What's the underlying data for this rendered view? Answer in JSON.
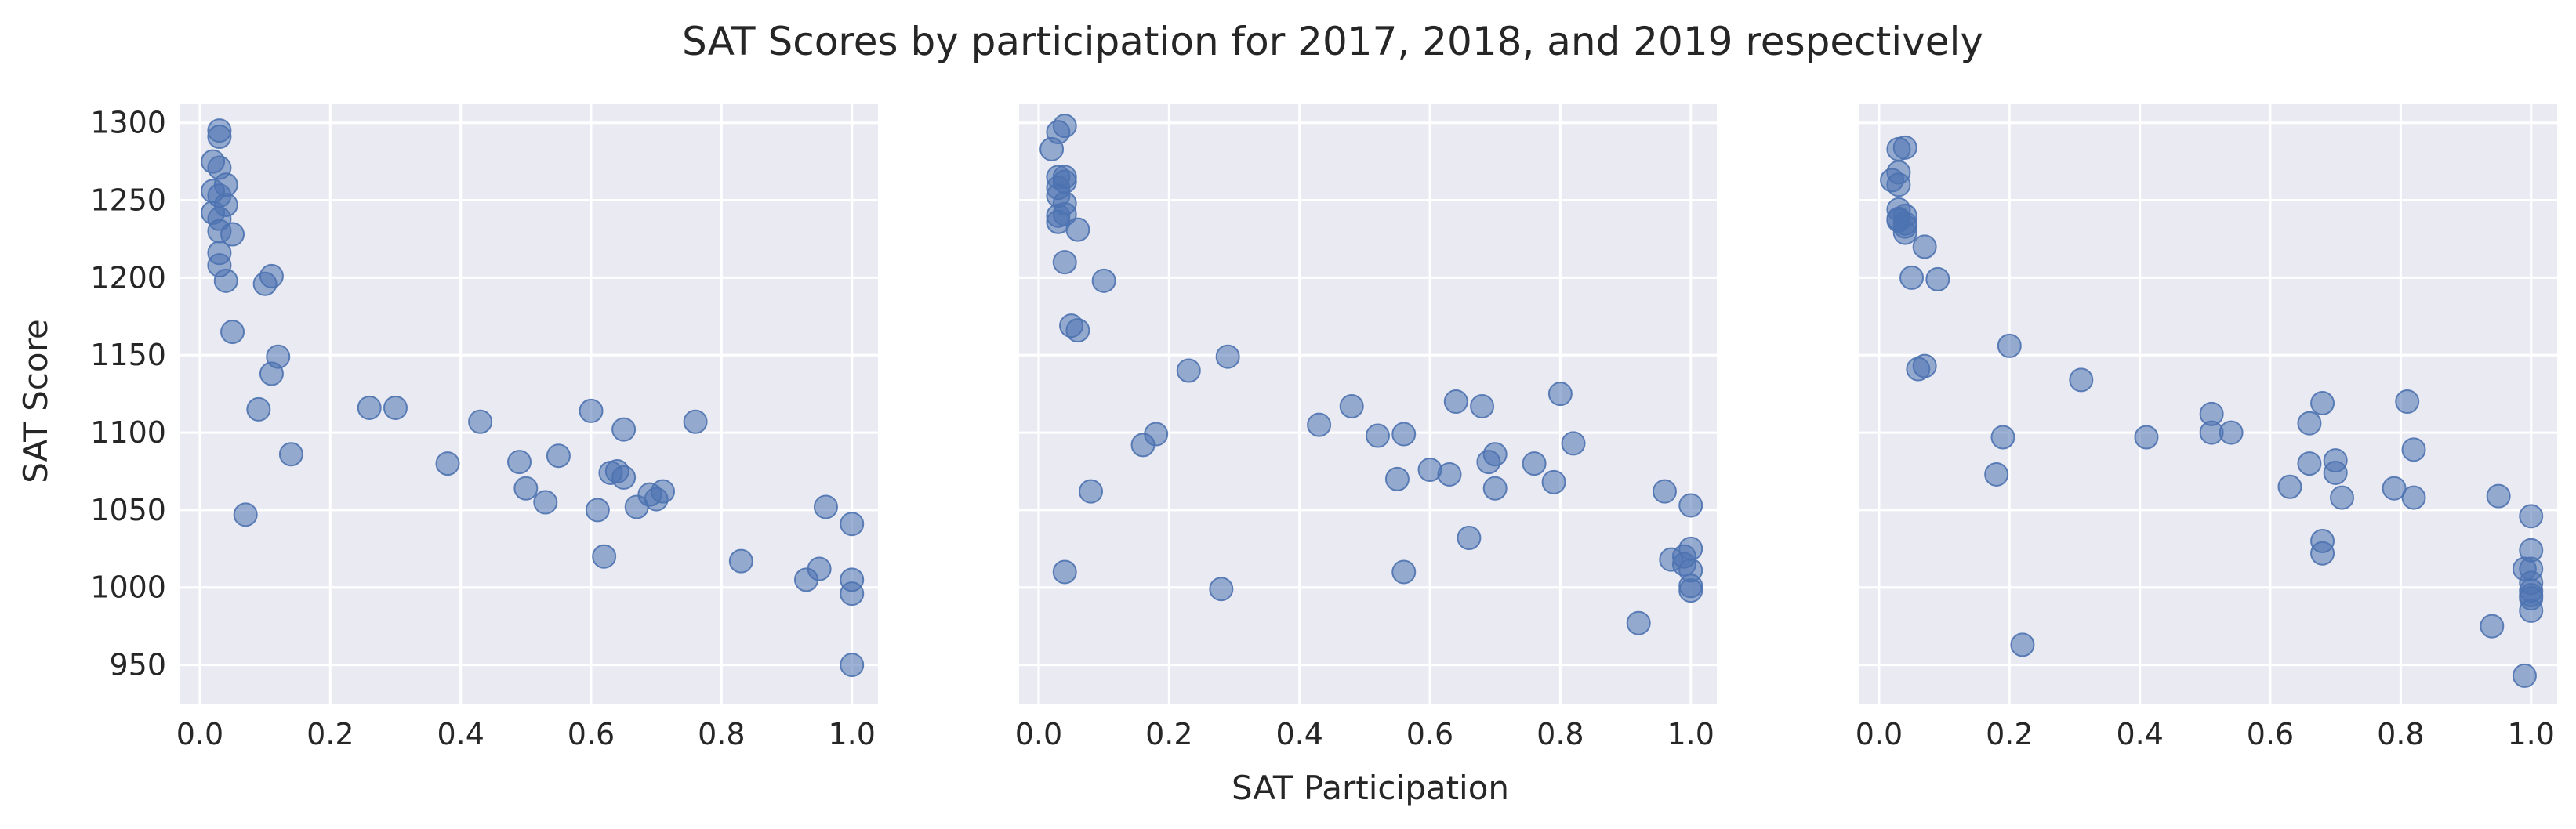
{
  "figure": {
    "title": "SAT Scores by participation for 2017, 2018, and 2019 respectively",
    "xlabel": "SAT Participation",
    "ylabel": "SAT Score",
    "background_color": "#eaeaf2",
    "grid_color": "#ffffff",
    "point_color": "#4c72b0"
  },
  "chart_data": [
    {
      "type": "scatter",
      "year_panel": 1,
      "xlim": [
        -0.03,
        1.04
      ],
      "ylim": [
        925,
        1312
      ],
      "xticks": [
        "0.0",
        "0.2",
        "0.4",
        "0.6",
        "0.8",
        "1.0"
      ],
      "yticks": [
        "950",
        "1000",
        "1050",
        "1100",
        "1150",
        "1200",
        "1250",
        "1300"
      ],
      "grid": true,
      "x": [
        0.03,
        0.03,
        0.02,
        0.03,
        0.04,
        0.02,
        0.03,
        0.04,
        0.02,
        0.03,
        0.03,
        0.05,
        0.03,
        0.03,
        0.04,
        0.05,
        0.11,
        0.1,
        0.12,
        0.11,
        0.09,
        0.14,
        0.07,
        0.26,
        0.3,
        0.38,
        0.43,
        0.49,
        0.5,
        0.53,
        0.55,
        0.6,
        0.61,
        0.62,
        0.63,
        0.64,
        0.65,
        0.65,
        0.67,
        0.69,
        0.7,
        0.71,
        0.76,
        0.83,
        0.93,
        0.95,
        0.96,
        1.0,
        1.0,
        1.0,
        1.0
      ],
      "y": [
        1295,
        1291,
        1275,
        1271,
        1260,
        1256,
        1253,
        1247,
        1242,
        1238,
        1230,
        1228,
        1216,
        1208,
        1198,
        1165,
        1201,
        1196,
        1149,
        1138,
        1115,
        1086,
        1047,
        1116,
        1116,
        1080,
        1107,
        1081,
        1064,
        1055,
        1085,
        1114,
        1050,
        1020,
        1074,
        1075,
        1102,
        1071,
        1052,
        1060,
        1057,
        1062,
        1107,
        1017,
        1005,
        1012,
        1052,
        1041,
        1005,
        996,
        950
      ]
    },
    {
      "type": "scatter",
      "year_panel": 2,
      "xlim": [
        -0.03,
        1.04
      ],
      "ylim": [
        925,
        1312
      ],
      "xticks": [
        "0.0",
        "0.2",
        "0.4",
        "0.6",
        "0.8",
        "1.0"
      ],
      "yticks": [
        "950",
        "1000",
        "1050",
        "1100",
        "1150",
        "1200",
        "1250",
        "1300"
      ],
      "grid": true,
      "x": [
        0.04,
        0.03,
        0.02,
        0.03,
        0.04,
        0.04,
        0.03,
        0.03,
        0.04,
        0.04,
        0.03,
        0.03,
        0.06,
        0.04,
        0.1,
        0.05,
        0.06,
        0.04,
        0.08,
        0.16,
        0.18,
        0.23,
        0.29,
        0.28,
        0.43,
        0.48,
        0.52,
        0.55,
        0.56,
        0.56,
        0.6,
        0.63,
        0.64,
        0.66,
        0.68,
        0.69,
        0.7,
        0.7,
        0.76,
        0.79,
        0.8,
        0.82,
        0.92,
        0.96,
        0.97,
        0.99,
        0.99,
        1.0,
        1.0,
        1.0,
        1.0,
        1.0
      ],
      "y": [
        1298,
        1294,
        1283,
        1265,
        1265,
        1262,
        1258,
        1253,
        1248,
        1241,
        1240,
        1236,
        1231,
        1210,
        1198,
        1169,
        1166,
        1010,
        1062,
        1092,
        1099,
        1140,
        1149,
        999,
        1105,
        1117,
        1098,
        1070,
        1099,
        1010,
        1076,
        1073,
        1120,
        1032,
        1117,
        1081,
        1086,
        1064,
        1080,
        1068,
        1125,
        1093,
        977,
        1062,
        1018,
        1020,
        1015,
        1053,
        1025,
        1011,
        1001,
        998
      ]
    },
    {
      "type": "scatter",
      "year_panel": 3,
      "xlim": [
        -0.03,
        1.04
      ],
      "ylim": [
        925,
        1312
      ],
      "xticks": [
        "0.0",
        "0.2",
        "0.4",
        "0.6",
        "0.8",
        "1.0"
      ],
      "yticks": [
        "950",
        "1000",
        "1050",
        "1100",
        "1150",
        "1200",
        "1250",
        "1300"
      ],
      "grid": true,
      "x": [
        0.04,
        0.03,
        0.03,
        0.02,
        0.03,
        0.03,
        0.04,
        0.03,
        0.04,
        0.03,
        0.04,
        0.04,
        0.07,
        0.05,
        0.09,
        0.07,
        0.06,
        0.2,
        0.19,
        0.18,
        0.22,
        0.31,
        0.41,
        0.51,
        0.51,
        0.54,
        0.63,
        0.66,
        0.66,
        0.68,
        0.68,
        0.68,
        0.7,
        0.7,
        0.71,
        0.79,
        0.81,
        0.82,
        0.82,
        0.94,
        0.95,
        1.0,
        1.0,
        1.0,
        0.99,
        1.0,
        1.0,
        1.0,
        1.0,
        1.0,
        0.99
      ],
      "y": [
        1284,
        1283,
        1268,
        1263,
        1260,
        1244,
        1240,
        1238,
        1235,
        1237,
        1233,
        1229,
        1220,
        1200,
        1199,
        1143,
        1141,
        1156,
        1097,
        1073,
        963,
        1134,
        1097,
        1112,
        1100,
        1100,
        1065,
        1106,
        1080,
        1119,
        1030,
        1022,
        1082,
        1074,
        1058,
        1064,
        1120,
        1089,
        1058,
        975,
        1059,
        1046,
        1024,
        1012,
        1012,
        1003,
        998,
        995,
        993,
        985,
        943
      ]
    }
  ]
}
